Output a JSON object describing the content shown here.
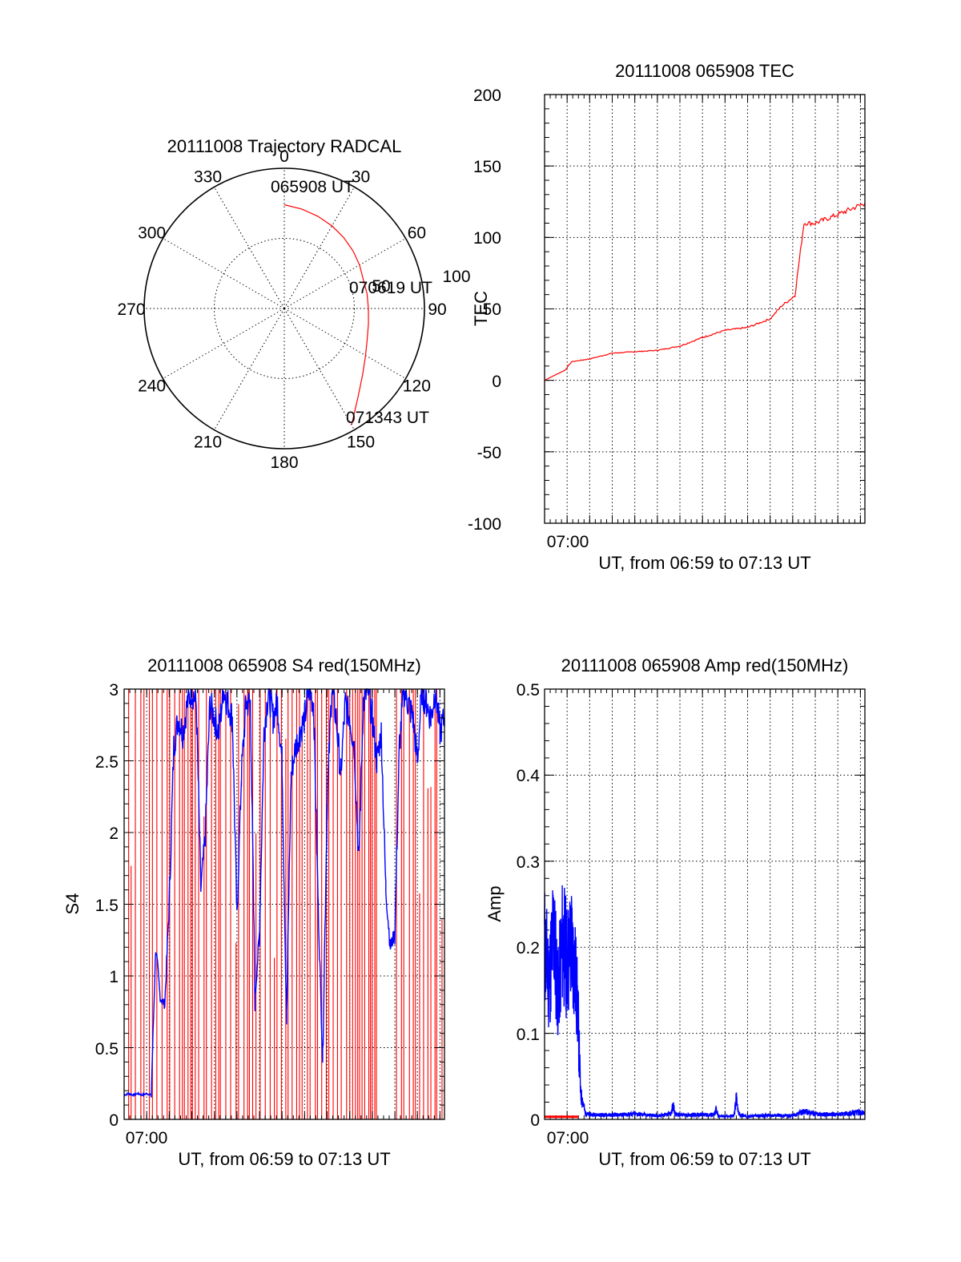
{
  "colors": {
    "primary_series": "#ff0000",
    "secondary_series": "#0000ff",
    "axes": "#000000",
    "grid": "#000000",
    "background": "#ffffff"
  },
  "chart_data": [
    {
      "type": "polar",
      "title": "20111008 Trajectory RADCAL",
      "azimuth_labels": [
        "0",
        "30",
        "60",
        "90",
        "120",
        "150",
        "180",
        "210",
        "240",
        "270",
        "300",
        "330"
      ],
      "radial_labels": [
        "50",
        "100"
      ],
      "grid": true,
      "trajectory": {
        "azimuth_deg": [
          0,
          10,
          20,
          30,
          40,
          50,
          60,
          70,
          80,
          90,
          100,
          110,
          120,
          130,
          140,
          150
        ],
        "radius": [
          74,
          72,
          70,
          68,
          66,
          64,
          62,
          60,
          60,
          60,
          61,
          63,
          67,
          73,
          82,
          96
        ]
      },
      "annotations": [
        "065908 UT",
        "070619 UT",
        "071343 UT"
      ]
    },
    {
      "type": "line",
      "title": "20111008 065908 TEC",
      "xlabel": "UT, from 06:59 to 07:13 UT",
      "ylabel": "TEC",
      "x_tick_labels": [
        "07:00"
      ],
      "y_tick_labels": [
        "200",
        "150",
        "100",
        "50",
        "0",
        "-50",
        "-100"
      ],
      "xlim": [
        0,
        14.2
      ],
      "ylim": [
        -100,
        200
      ],
      "grid": true,
      "series": [
        {
          "x": [
            0,
            0.5,
            0.9,
            1.2,
            2,
            3,
            4,
            5,
            6,
            7,
            8,
            9,
            10,
            10.5,
            11.0,
            11.1,
            11.5,
            12,
            13,
            14.2
          ],
          "y": [
            0,
            4,
            7,
            13,
            15,
            19,
            20,
            21,
            24,
            30,
            35,
            37,
            43,
            52,
            58,
            60,
            110,
            110,
            116,
            124
          ]
        }
      ]
    },
    {
      "type": "line",
      "title": "20111008 065908 S4 red(150MHz)",
      "xlabel": "UT, from 06:59 to 07:13 UT",
      "ylabel": "S4",
      "x_tick_labels": [
        "07:00"
      ],
      "y_tick_labels": [
        "3",
        "2.5",
        "2",
        "1.5",
        "1",
        "0.5",
        "0"
      ],
      "xlim": [
        0,
        14.2
      ],
      "ylim": [
        0,
        3
      ],
      "grid": true,
      "series": [
        {
          "x": [
            0.0,
            0.2,
            0.4,
            0.6,
            0.8,
            1.0,
            1.2,
            1.4,
            1.6,
            1.8,
            2.0,
            2.2,
            2.4,
            2.6,
            2.8,
            3.0,
            3.2,
            3.4,
            3.6,
            3.8,
            4.0,
            4.2,
            4.4,
            4.6,
            4.8,
            5.0,
            5.2,
            5.4,
            5.6,
            5.8,
            6.0,
            6.2,
            6.4,
            6.6,
            6.8,
            7.0,
            7.2,
            7.4,
            7.6,
            7.8,
            8.0,
            8.2,
            8.4,
            8.6,
            8.8,
            9.0,
            9.2,
            9.4,
            9.6,
            9.8,
            10.0,
            10.2,
            10.4,
            10.6,
            10.8,
            11.0,
            11.2,
            11.4,
            11.6,
            11.8,
            12.0,
            12.2,
            12.4,
            12.6,
            12.8,
            13.0,
            13.2,
            13.4,
            13.6,
            13.8,
            14.0,
            14.2
          ],
          "values": [
            0.17,
            0.18,
            0.17,
            0.18,
            0.17,
            0.18,
            0.17,
            1.2,
            0.85,
            0.8,
            1.5,
            2.6,
            2.8,
            2.7,
            2.9,
            3.0,
            2.9,
            1.6,
            2.0,
            2.9,
            2.8,
            2.7,
            3.0,
            2.9,
            2.8,
            1.4,
            2.4,
            2.9,
            2.9,
            0.85,
            1.3,
            2.7,
            3.0,
            2.8,
            2.9,
            2.5,
            0.7,
            2.4,
            2.6,
            2.7,
            2.8,
            3.0,
            2.9,
            1.5,
            0.42,
            2.2,
            3.0,
            2.8,
            2.4,
            2.9,
            2.8,
            2.6,
            1.8,
            2.9,
            3.0,
            2.8,
            2.5,
            2.7,
            1.6,
            1.2,
            1.3,
            2.6,
            3.0,
            2.9,
            2.8,
            2.5,
            3.0,
            2.9,
            2.8,
            3.0,
            2.7,
            2.8
          ]
        }
      ]
    },
    {
      "type": "line",
      "title": "20111008 065908 Amp red(150MHz)",
      "xlabel": "UT, from 06:59 to 07:13 UT",
      "ylabel": "Amp",
      "x_tick_labels": [
        "07:00"
      ],
      "y_tick_labels": [
        "0.5",
        "0.4",
        "0.3",
        "0.2",
        "0.1",
        "0"
      ],
      "xlim": [
        0,
        14.2
      ],
      "ylim": [
        0,
        0.5
      ],
      "grid": true,
      "series": [
        {
          "x": [
            0.0,
            0.2,
            0.4,
            0.6,
            0.8,
            1.0,
            1.2,
            1.4,
            1.5,
            1.6,
            1.7,
            1.8,
            2.0,
            3.0,
            4.0,
            5.0,
            5.6,
            5.7,
            5.8,
            6.0,
            7.0,
            7.5,
            7.6,
            7.7,
            8.0,
            8.4,
            8.5,
            8.6,
            8.8,
            9.0,
            10.0,
            11.0,
            11.5,
            12.0,
            13.0,
            14.0,
            14.2
          ],
          "values": [
            0.28,
            0.22,
            0.3,
            0.2,
            0.29,
            0.25,
            0.28,
            0.22,
            0.15,
            0.04,
            0.03,
            0.01,
            0.008,
            0.007,
            0.009,
            0.006,
            0.009,
            0.023,
            0.009,
            0.007,
            0.008,
            0.007,
            0.016,
            0.006,
            0.005,
            0.006,
            0.034,
            0.009,
            0.006,
            0.005,
            0.007,
            0.006,
            0.013,
            0.009,
            0.008,
            0.012,
            0.01
          ]
        },
        {
          "x": [
            0.0,
            0.5,
            1.0,
            1.5
          ],
          "values": [
            0.003,
            0.003,
            0.003,
            0.003
          ]
        }
      ]
    }
  ]
}
